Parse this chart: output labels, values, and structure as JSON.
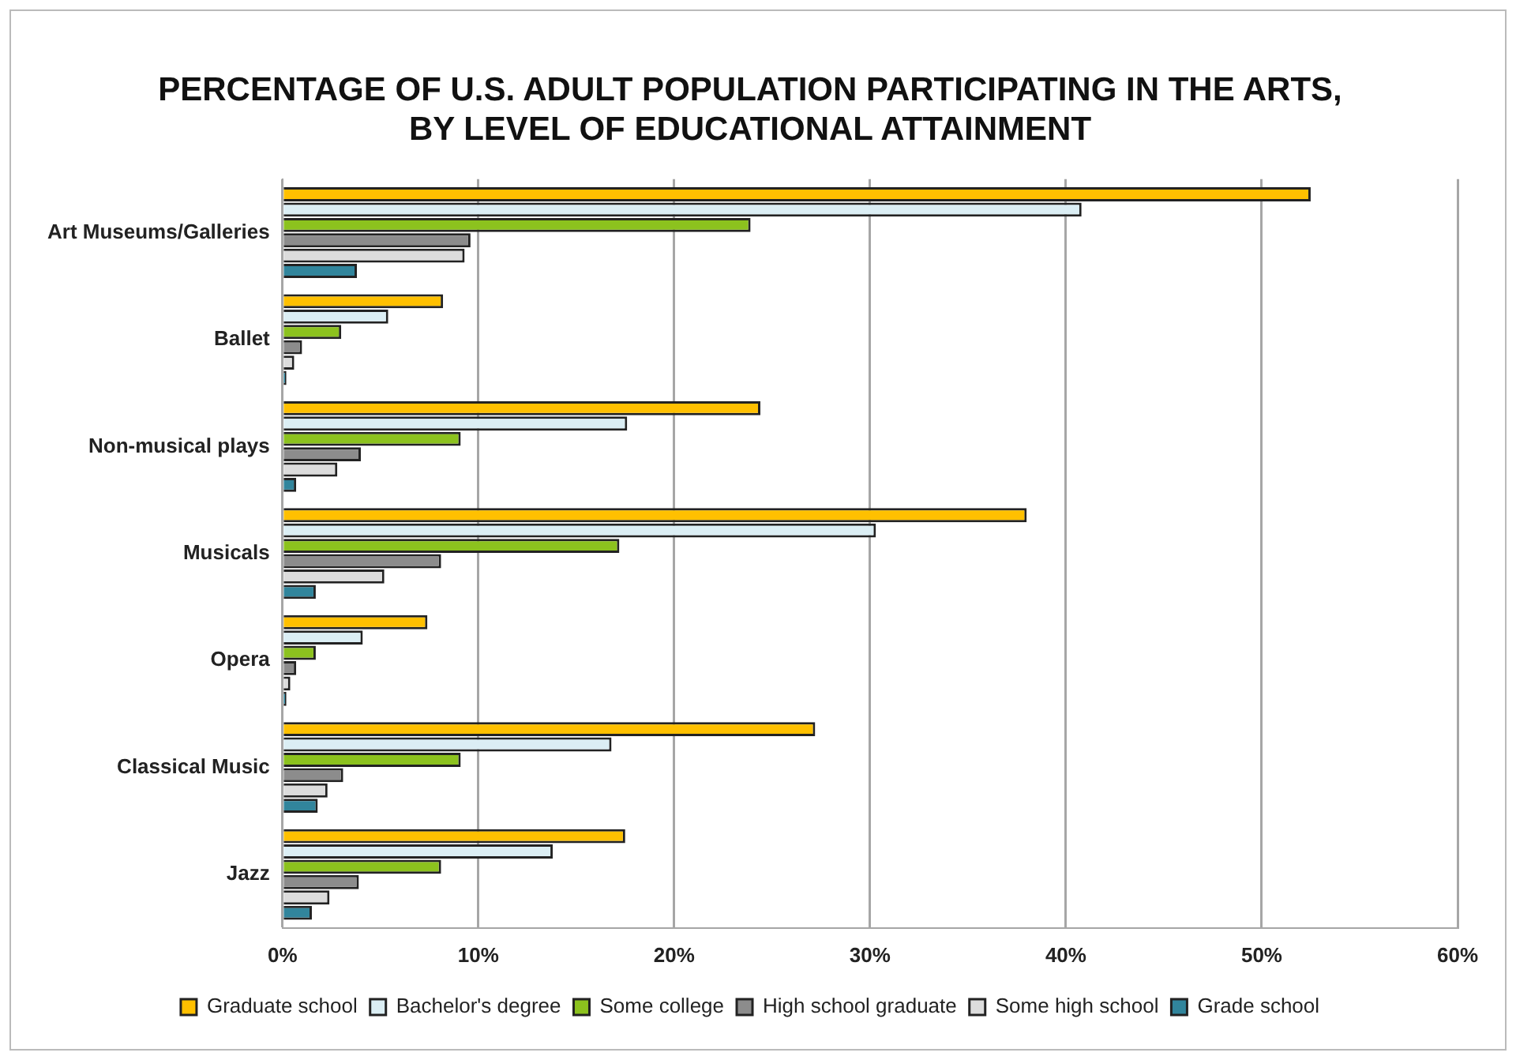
{
  "chart_data": {
    "type": "bar",
    "orientation": "horizontal",
    "title": "PERCENTAGE OF U.S. ADULT POPULATION PARTICIPATING IN THE ARTS, BY LEVEL OF EDUCATIONAL ATTAINMENT",
    "categories": [
      "Art Museums/Galleries",
      "Ballet",
      "Non-musical plays",
      "Musicals",
      "Opera",
      "Classical Music",
      "Jazz"
    ],
    "series": [
      {
        "name": "Graduate school",
        "color": "#ffc000",
        "values": [
          52.5,
          8.2,
          24.4,
          38.0,
          7.4,
          27.2,
          17.5
        ]
      },
      {
        "name": "Bachelor's degree",
        "color": "#dbeef4",
        "values": [
          40.8,
          5.4,
          17.6,
          30.3,
          4.1,
          16.8,
          13.8
        ]
      },
      {
        "name": "Some college",
        "color": "#8cc21e",
        "values": [
          23.9,
          3.0,
          9.1,
          17.2,
          1.7,
          9.1,
          8.1
        ]
      },
      {
        "name": "High school graduate",
        "color": "#8c8c8c",
        "values": [
          9.6,
          1.0,
          4.0,
          8.1,
          0.7,
          3.1,
          3.9
        ]
      },
      {
        "name": "Some high school",
        "color": "#dcdcdc",
        "values": [
          9.3,
          0.6,
          2.8,
          5.2,
          0.4,
          2.3,
          2.4
        ]
      },
      {
        "name": "Grade school",
        "color": "#31859c",
        "values": [
          3.8,
          0.2,
          0.7,
          1.7,
          0.2,
          1.8,
          1.5
        ]
      }
    ],
    "xlim": [
      0,
      60
    ],
    "xticks": [
      {
        "value": 0,
        "label": "0%"
      },
      {
        "value": 10,
        "label": "10%"
      },
      {
        "value": 20,
        "label": "20%"
      },
      {
        "value": 30,
        "label": "30%"
      },
      {
        "value": 40,
        "label": "40%"
      },
      {
        "value": 50,
        "label": "50%"
      },
      {
        "value": 60,
        "label": "60%"
      }
    ],
    "grid": "x",
    "legend": "bottom"
  }
}
